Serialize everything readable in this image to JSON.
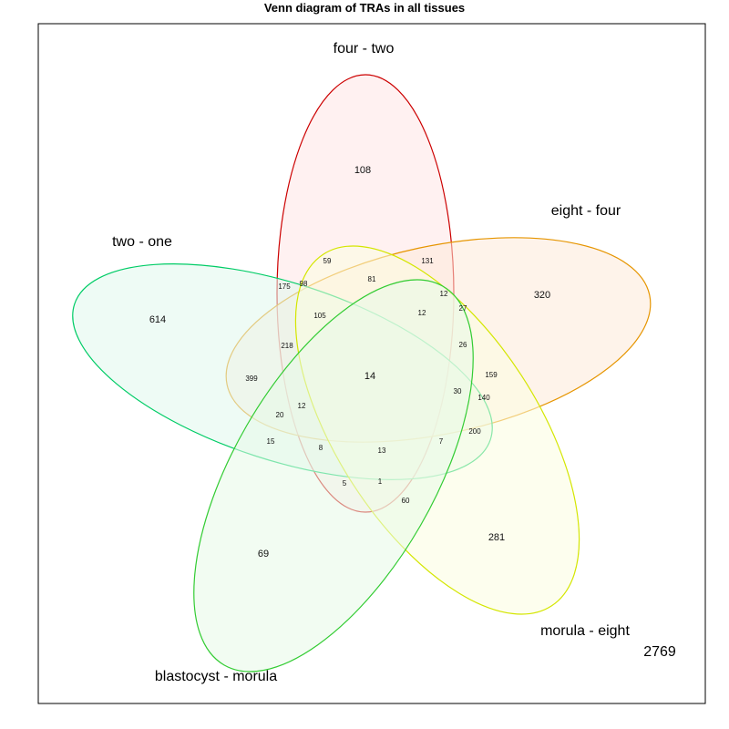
{
  "title": "Venn diagram of TRAs in all tissues",
  "sets": [
    {
      "key": "four_two",
      "label": "four - two",
      "stroke": "#cc0000",
      "fill": "#ffe6e6"
    },
    {
      "key": "eight_four",
      "label": "eight - four",
      "stroke": "#e69500",
      "fill": "#fde9d9"
    },
    {
      "key": "two_one",
      "label": "two - one",
      "stroke": "#00cc66",
      "fill": "#e0f7ec"
    },
    {
      "key": "morula_eight",
      "label": "morula - eight",
      "stroke": "#d4e600",
      "fill": "#fbfde0"
    },
    {
      "key": "blastocyst_morula",
      "label": "blastocyst - morula",
      "stroke": "#33cc33",
      "fill": "#e8fae8"
    }
  ],
  "regions": [
    "108",
    "320",
    "614",
    "281",
    "69",
    "59",
    "131",
    "175",
    "98",
    "81",
    "12",
    "27",
    "12",
    "105",
    "218",
    "26",
    "399",
    "14",
    "159",
    "30",
    "140",
    "12",
    "20",
    "200",
    "15",
    "8",
    "13",
    "7",
    "5",
    "1",
    "60"
  ],
  "outside_value": "2769"
}
